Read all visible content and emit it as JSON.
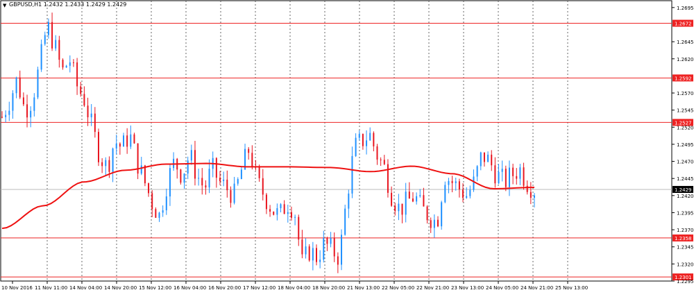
{
  "window": {
    "symbol_line": "GBPUSD,H1  1.2432 1.2433 1.2429 1.2429",
    "menu_icon": "triangle-down-icon"
  },
  "colors": {
    "bull": "#1e90ff",
    "bear": "#e8141e",
    "ma": "#ee1111",
    "level": "#ee2222",
    "grid": "#404040",
    "current": "#bbbbbb",
    "current_tag": "#000000"
  },
  "chart_data": {
    "type": "candlestick",
    "title": "GBPUSD,H1",
    "ohlc_readout": {
      "open": 1.2432,
      "high": 1.2433,
      "low": 1.2429,
      "close": 1.2429
    },
    "ylim": [
      1.2295,
      1.2705
    ],
    "y_ticks": [
      "1.2695",
      "1.2645",
      "1.2620",
      "1.2570",
      "1.2545",
      "1.2520",
      "1.2495",
      "1.2470",
      "1.2445",
      "1.2420",
      "1.2395",
      "1.2370",
      "1.2345",
      "1.2320",
      "1.2295"
    ],
    "x_ticks": [
      "10 Nov 2016",
      "11 Nov 11:00",
      "14 Nov 04:00",
      "14 Nov 20:00",
      "15 Nov 12:00",
      "16 Nov 04:00",
      "16 Nov 20:00",
      "17 Nov 12:00",
      "18 Nov 04:00",
      "18 Nov 20:00",
      "21 Nov 13:00",
      "22 Nov 05:00",
      "22 Nov 21:00",
      "23 Nov 13:00",
      "24 Nov 05:00",
      "24 Nov 21:00",
      "25 Nov 13:00"
    ],
    "horizontal_levels": [
      {
        "value": 1.2672,
        "label": "1.2672"
      },
      {
        "value": 1.2592,
        "label": "1.2592"
      },
      {
        "value": 1.2527,
        "label": "1.2527"
      },
      {
        "value": 1.2358,
        "label": "1.2358"
      },
      {
        "value": 1.2301,
        "label": "1.2301"
      }
    ],
    "current_price": {
      "value": 1.2429,
      "label": "1.2429"
    },
    "moving_average": [
      1.2372,
      1.2405,
      1.244,
      1.2457,
      1.2466,
      1.2467,
      1.2462,
      1.2462,
      1.2461,
      1.2455,
      1.2463,
      1.2452,
      1.243,
      1.2432
    ],
    "candle_path": [
      1.2535,
      1.256,
      1.259,
      1.2545,
      1.256,
      1.261,
      1.267,
      1.264,
      1.26,
      1.262,
      1.258,
      1.256,
      1.252,
      1.248,
      1.246,
      1.25,
      1.249,
      1.251,
      1.247,
      1.244,
      1.241,
      1.239,
      1.244,
      1.247,
      1.245,
      1.248,
      1.245,
      1.243,
      1.246,
      1.244,
      1.243,
      1.242,
      1.246,
      1.249,
      1.244,
      1.242,
      1.24,
      1.239,
      1.241,
      1.24,
      1.232,
      1.234,
      1.233,
      1.235,
      1.234,
      1.233,
      1.242,
      1.249,
      1.25,
      1.251,
      1.248,
      1.246,
      1.242,
      1.24,
      1.241,
      1.242,
      1.24,
      1.239,
      1.238,
      1.245,
      1.244,
      1.243,
      1.242,
      1.244,
      1.248,
      1.247,
      1.245,
      1.244,
      1.245,
      1.246,
      1.244,
      1.2429
    ],
    "n_candles": 150
  }
}
